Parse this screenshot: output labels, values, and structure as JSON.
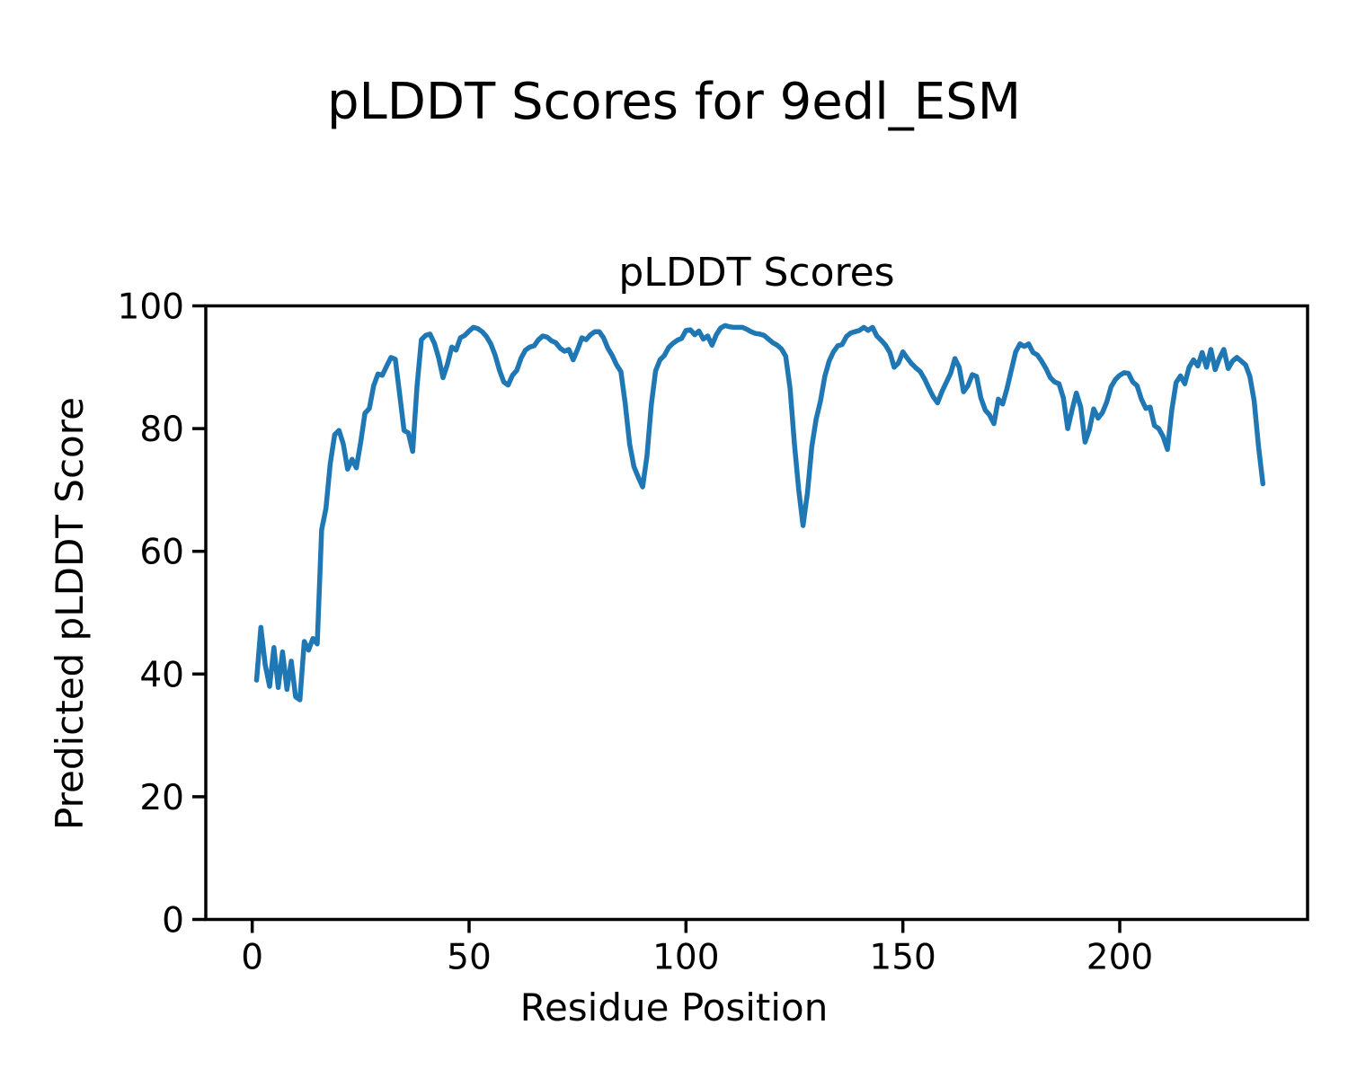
{
  "figure": {
    "suptitle": "pLDDT Scores for 9edl_ESM",
    "background_color": "#ffffff",
    "text_color": "#000000"
  },
  "chart_data": {
    "type": "line",
    "title": "pLDDT Scores",
    "xlabel": "Residue Position",
    "ylabel": "Predicted pLDDT Score",
    "grid": false,
    "legend": false,
    "xlim": [
      -10.7,
      243.3
    ],
    "ylim": [
      0,
      100
    ],
    "xticks": [
      0,
      50,
      100,
      150,
      200
    ],
    "yticks": [
      0,
      20,
      40,
      60,
      80,
      100
    ],
    "series": [
      {
        "name": "pLDDT",
        "color": "#1f77b4",
        "x_start": 1,
        "x_step": 1,
        "values": [
          39.0,
          47.6,
          41.5,
          38.0,
          44.3,
          37.8,
          43.6,
          37.5,
          42.1,
          36.3,
          35.8,
          45.3,
          43.9,
          45.8,
          44.9,
          63.5,
          67.0,
          74.3,
          79.0,
          79.7,
          77.5,
          73.4,
          75.0,
          73.6,
          77.7,
          82.5,
          83.3,
          87.0,
          88.9,
          88.7,
          90.2,
          91.6,
          91.3,
          85.5,
          79.7,
          79.3,
          76.3,
          87.0,
          94.5,
          95.2,
          95.4,
          93.9,
          91.5,
          88.3,
          90.5,
          93.3,
          92.8,
          94.8,
          95.2,
          95.9,
          96.5,
          96.3,
          95.8,
          95.0,
          93.8,
          92.0,
          89.5,
          87.6,
          87.1,
          88.7,
          89.5,
          91.5,
          92.8,
          93.3,
          93.5,
          94.5,
          95.1,
          94.9,
          94.3,
          94.0,
          93.1,
          92.6,
          92.9,
          91.2,
          92.9,
          94.8,
          94.5,
          95.3,
          95.8,
          95.8,
          94.8,
          93.1,
          91.9,
          90.4,
          89.3,
          84.1,
          77.5,
          73.8,
          72.1,
          70.5,
          75.5,
          83.8,
          89.4,
          91.2,
          91.9,
          93.2,
          93.9,
          94.4,
          94.7,
          96.0,
          96.1,
          95.3,
          95.9,
          94.6,
          95.1,
          93.6,
          95.3,
          96.4,
          96.8,
          96.6,
          96.5,
          96.5,
          96.5,
          96.2,
          95.8,
          95.5,
          95.4,
          95.2,
          94.6,
          94.0,
          93.6,
          93.0,
          91.8,
          86.5,
          77.5,
          70.0,
          64.2,
          69.5,
          77.0,
          81.5,
          84.5,
          88.5,
          91.0,
          92.5,
          93.5,
          93.7,
          95.0,
          95.6,
          95.8,
          96.0,
          96.5,
          96.0,
          96.5,
          95.1,
          94.4,
          93.6,
          92.4,
          90.0,
          90.7,
          92.5,
          91.5,
          90.6,
          89.9,
          89.3,
          88.1,
          86.6,
          85.2,
          84.2,
          86.0,
          87.5,
          89.0,
          91.4,
          90.0,
          86.0,
          87.0,
          88.8,
          88.5,
          85.0,
          83.0,
          82.2,
          80.8,
          84.8,
          84.0,
          86.5,
          89.5,
          92.5,
          93.8,
          93.4,
          93.8,
          92.4,
          92.0,
          91.0,
          89.8,
          88.3,
          87.6,
          87.3,
          85.0,
          80.0,
          83.0,
          85.8,
          83.5,
          77.8,
          79.8,
          83.2,
          81.7,
          82.6,
          84.3,
          86.8,
          88.0,
          88.7,
          89.1,
          89.0,
          87.6,
          87.0,
          84.8,
          83.3,
          83.5,
          80.5,
          80.0,
          78.7,
          76.6,
          83.0,
          87.5,
          88.6,
          87.3,
          90.0,
          91.2,
          90.2,
          92.4,
          90.0,
          92.9,
          89.6,
          91.5,
          92.9,
          89.8,
          91.0,
          91.6,
          91.0,
          90.4,
          88.5,
          84.5,
          77.0,
          71.0
        ]
      }
    ]
  }
}
